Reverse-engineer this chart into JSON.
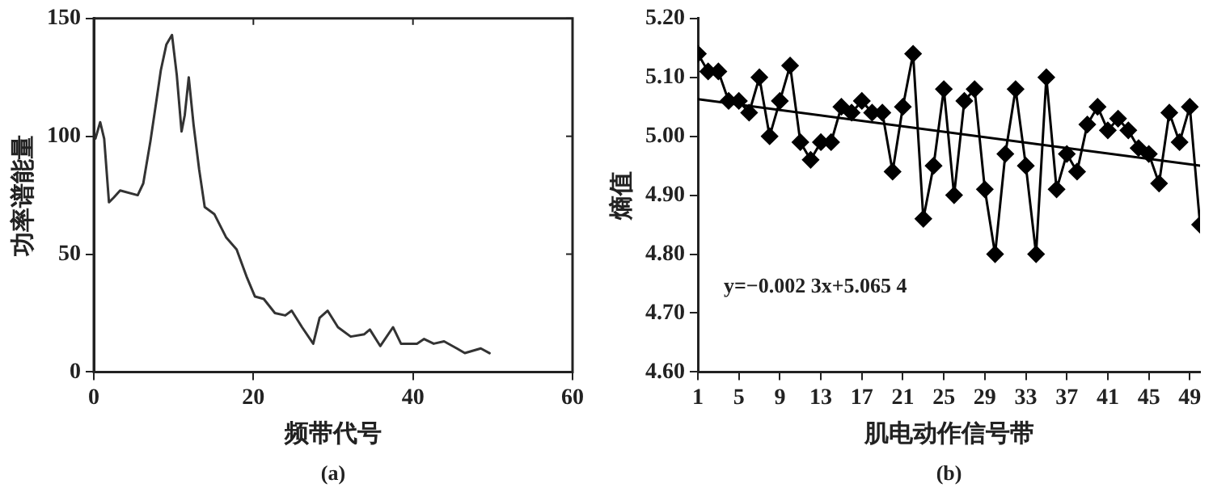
{
  "chart_data": [
    {
      "type": "line",
      "xlabel": "频带代号",
      "ylabel": "功率谱能量",
      "annotations": [
        "(a)"
      ],
      "xlim": [
        0,
        60
      ],
      "xticks": [
        0,
        20,
        40,
        60
      ],
      "ylim": [
        0,
        150
      ],
      "yticks": [
        0,
        50,
        100,
        150
      ],
      "grid": false,
      "legend": false,
      "marker": "none",
      "line_style": "solid",
      "series": [
        {
          "color": "#333333",
          "x": [
            0.2,
            0.8,
            1.3,
            1.9,
            2.5,
            3.3,
            5.5,
            6.2,
            7.1,
            7.8,
            8.4,
            9.1,
            9.8,
            10.4,
            11.0,
            11.4,
            11.9,
            12.5,
            13.2,
            13.9,
            15.1,
            16.6,
            17.9,
            19.2,
            20.2,
            21.3,
            22.7,
            24.0,
            24.8,
            26.1,
            27.5,
            28.3,
            29.3,
            30.6,
            32.2,
            33.9,
            34.6,
            35.9,
            37.5,
            38.5,
            40.5,
            41.4,
            42.6,
            43.9,
            45.5,
            46.5,
            48.5,
            49.6
          ],
          "values": [
            99,
            106,
            99,
            72,
            74,
            77,
            75,
            80,
            98,
            114,
            128,
            139,
            143,
            126,
            102,
            109,
            125,
            105,
            86,
            70,
            67,
            57,
            52,
            40,
            32,
            31,
            25,
            24,
            26,
            19,
            12,
            23,
            26,
            19,
            15,
            16,
            18,
            11,
            19,
            12,
            12,
            14,
            12,
            13,
            10,
            8,
            10,
            8
          ]
        }
      ]
    },
    {
      "type": "line",
      "xlabel": "肌电动作信号带",
      "ylabel": "熵值",
      "annotations": [
        "y=−0.002 3x+5.065 4",
        "(b)"
      ],
      "xlim": [
        1,
        50
      ],
      "xticks": [
        1,
        5,
        9,
        13,
        17,
        21,
        25,
        29,
        33,
        37,
        41,
        45,
        49
      ],
      "ylim": [
        4.6,
        5.2
      ],
      "yticks": [
        {
          "value": 4.6,
          "label": "4.60"
        },
        {
          "value": 4.7,
          "label": "4.70"
        },
        {
          "value": 4.8,
          "label": "4.80"
        },
        {
          "value": 4.9,
          "label": "4.90"
        },
        {
          "value": 5.0,
          "label": "5.00"
        },
        {
          "value": 5.1,
          "label": "5.10"
        },
        {
          "value": 5.2,
          "label": "5.20"
        }
      ],
      "grid": false,
      "legend": false,
      "line_style": "solid",
      "series": [
        {
          "color": "#000000",
          "marker": "diamond",
          "x": [
            1,
            2,
            3,
            4,
            5,
            6,
            7,
            8,
            9,
            10,
            11,
            12,
            13,
            14,
            15,
            16,
            17,
            18,
            19,
            20,
            21,
            22,
            23,
            24,
            25,
            26,
            27,
            28,
            29,
            30,
            31,
            32,
            33,
            34,
            35,
            36,
            37,
            38,
            39,
            40,
            41,
            42,
            43,
            44,
            45,
            46,
            47,
            48,
            49,
            50
          ],
          "values": [
            5.14,
            5.11,
            5.11,
            5.06,
            5.06,
            5.04,
            5.1,
            5.0,
            5.06,
            5.12,
            4.99,
            4.96,
            4.99,
            4.99,
            5.05,
            5.04,
            5.06,
            5.04,
            5.04,
            4.94,
            5.05,
            5.14,
            4.86,
            4.95,
            5.08,
            4.9,
            5.06,
            5.08,
            4.91,
            4.8,
            4.97,
            5.08,
            4.95,
            4.8,
            5.1,
            4.91,
            4.97,
            4.94,
            5.02,
            5.05,
            5.01,
            5.03,
            5.01,
            4.98,
            4.97,
            4.92,
            5.04,
            4.99,
            5.05,
            4.85
          ]
        },
        {
          "type": "line",
          "color": "#000000",
          "marker": "none",
          "x": [
            1,
            50
          ],
          "values": [
            5.063,
            4.95
          ]
        }
      ]
    }
  ]
}
